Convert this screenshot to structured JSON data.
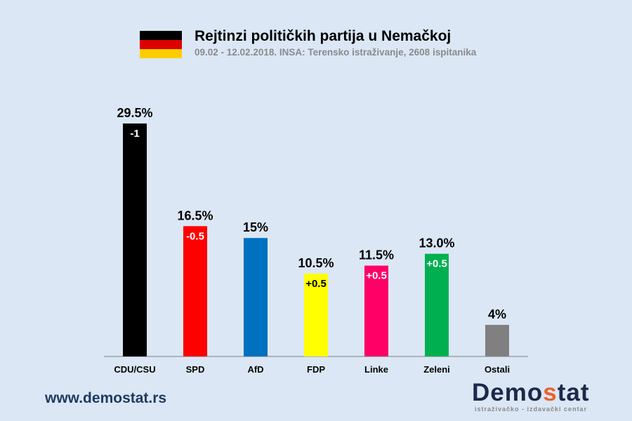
{
  "header": {
    "title": "Rejtinzi političkih partija u Nemačkoj",
    "subtitle": "09.02 - 12.02.2018. INSA: Terensko istraživanje, 2608 ispitanika",
    "flag_colors": [
      "#000000",
      "#dd0000",
      "#ffce00"
    ]
  },
  "footer": {
    "website": "www.demostat.rs",
    "logo_a": "Demo",
    "logo_s": "s",
    "logo_b": "tat",
    "logo_tagline": "istraživačko - izdavački centar"
  },
  "chart_data": {
    "type": "bar",
    "categories": [
      "CDU/CSU",
      "SPD",
      "AfD",
      "FDP",
      "Linke",
      "Zeleni",
      "Ostali"
    ],
    "values": [
      29.5,
      16.5,
      15,
      10.5,
      11.5,
      13.0,
      4
    ],
    "value_labels": [
      "29.5%",
      "16.5%",
      "15%",
      "10.5%",
      "11.5%",
      "13.0%",
      "4%"
    ],
    "change_labels": [
      "-1",
      "-0.5",
      "",
      "+0.5",
      "+0.5",
      "+0.5",
      ""
    ],
    "colors": [
      "#000000",
      "#ff0000",
      "#0070c0",
      "#ffff00",
      "#ff0066",
      "#00b050",
      "#808080"
    ],
    "change_text_colors": [
      "#ffffff",
      "#ffffff",
      "#ffffff",
      "#000000",
      "#ffffff",
      "#ffffff",
      "#ffffff"
    ],
    "ylim": [
      0,
      30
    ],
    "grid": false
  }
}
